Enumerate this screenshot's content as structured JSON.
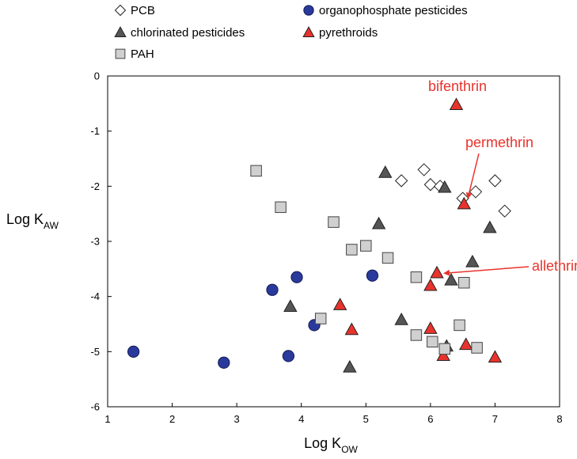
{
  "chart_data": {
    "type": "scatter",
    "title": "",
    "xlabel": {
      "base": "Log K",
      "sub": "OW"
    },
    "ylabel": {
      "base": "Log K",
      "sub": "AW"
    },
    "xlim": [
      1,
      8
    ],
    "ylim": [
      -6,
      0
    ],
    "xticks": [
      1,
      2,
      3,
      4,
      5,
      6,
      7,
      8
    ],
    "yticks": [
      0,
      -1,
      -2,
      -3,
      -4,
      -5,
      -6
    ],
    "grid": false,
    "legend_position": "top",
    "series": [
      {
        "name": "PCB",
        "marker": "diamond-open",
        "color": "#ffffff",
        "points": [
          [
            5.55,
            -1.9
          ],
          [
            5.9,
            -1.7
          ],
          [
            6.0,
            -1.97
          ],
          [
            6.15,
            -2.0
          ],
          [
            6.5,
            -2.22
          ],
          [
            6.7,
            -2.1
          ],
          [
            7.0,
            -1.9
          ],
          [
            7.15,
            -2.45
          ]
        ]
      },
      {
        "name": "organophosphate pesticides",
        "marker": "circle",
        "color": "#2a3a9c",
        "points": [
          [
            1.4,
            -5.0
          ],
          [
            2.8,
            -5.2
          ],
          [
            3.55,
            -3.88
          ],
          [
            3.8,
            -5.08
          ],
          [
            3.93,
            -3.65
          ],
          [
            4.2,
            -4.52
          ],
          [
            5.1,
            -3.62
          ]
        ]
      },
      {
        "name": "chlorinated pesticides",
        "marker": "triangle",
        "color": "#555555",
        "points": [
          [
            3.83,
            -4.18
          ],
          [
            4.75,
            -5.28
          ],
          [
            5.2,
            -2.68
          ],
          [
            5.3,
            -1.75
          ],
          [
            5.55,
            -4.42
          ],
          [
            6.22,
            -2.02
          ],
          [
            6.32,
            -3.7
          ],
          [
            6.65,
            -3.37
          ],
          [
            6.92,
            -2.75
          ],
          [
            6.25,
            -4.9
          ]
        ]
      },
      {
        "name": "pyrethroids",
        "marker": "triangle",
        "color": "#e8332c",
        "points": [
          [
            6.4,
            -0.52
          ],
          [
            6.52,
            -2.32
          ],
          [
            6.1,
            -3.57
          ],
          [
            6.0,
            -3.8
          ],
          [
            4.6,
            -4.15
          ],
          [
            4.78,
            -4.6
          ],
          [
            6.0,
            -4.58
          ],
          [
            6.2,
            -5.07
          ],
          [
            6.55,
            -4.87
          ],
          [
            7.0,
            -5.1
          ]
        ]
      },
      {
        "name": "PAH",
        "marker": "square",
        "color": "#d0d0d0",
        "points": [
          [
            3.3,
            -1.72
          ],
          [
            3.68,
            -2.38
          ],
          [
            4.5,
            -2.65
          ],
          [
            4.78,
            -3.15
          ],
          [
            5.0,
            -3.08
          ],
          [
            5.34,
            -3.3
          ],
          [
            4.3,
            -4.4
          ],
          [
            5.78,
            -3.65
          ],
          [
            6.52,
            -3.75
          ],
          [
            5.78,
            -4.7
          ],
          [
            6.03,
            -4.82
          ],
          [
            6.22,
            -4.95
          ],
          [
            6.45,
            -4.52
          ],
          [
            6.72,
            -4.93
          ]
        ]
      }
    ],
    "annotations": [
      {
        "text": "bifenthrin",
        "point": [
          6.4,
          -0.52
        ]
      },
      {
        "text": "permethrin",
        "point": [
          6.52,
          -2.32
        ]
      },
      {
        "text": "allethrin",
        "point": [
          6.1,
          -3.57
        ]
      }
    ]
  }
}
